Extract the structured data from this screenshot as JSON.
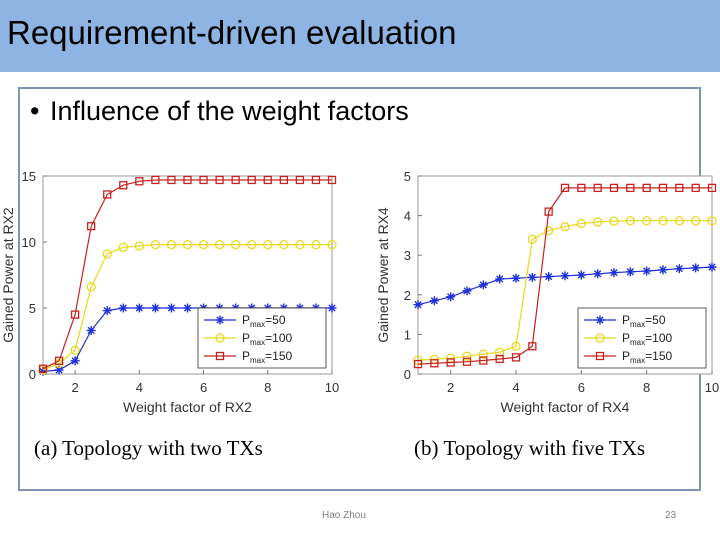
{
  "slide": {
    "title": "Requirement-driven evaluation",
    "bullet": "Influence of the weight factors",
    "footer_author": "Hao Zhou",
    "page_number": "23"
  },
  "colors": {
    "title_bar": "#8eb4e3",
    "frame": "#7f94b4",
    "series_blue": "#1f2fd9",
    "series_yellow": "#e8d81a",
    "series_red": "#c8221f"
  },
  "chart_data": [
    {
      "type": "line",
      "caption": "(a)  Topology  with  two  TXs",
      "xlabel": "Weight factor of RX2",
      "ylabel": "Gained Power at RX2",
      "xlim": [
        1,
        10
      ],
      "ylim": [
        0,
        15
      ],
      "xticks": [
        "2",
        "4",
        "6",
        "8",
        "10"
      ],
      "yticks": [
        "0",
        "5",
        "10",
        "15"
      ],
      "legend_position": "bottom-right",
      "x": [
        1,
        1.5,
        2,
        2.5,
        3,
        3.5,
        4,
        4.5,
        5,
        5.5,
        6,
        6.5,
        7,
        7.5,
        8,
        8.5,
        9,
        9.5,
        10
      ],
      "series": [
        {
          "name_base": "P",
          "name_sub": "max",
          "name_value": "=50",
          "marker": "asterisk",
          "color": "#1f2fd9",
          "values": [
            0.2,
            0.3,
            1.0,
            3.3,
            4.8,
            5.0,
            5.0,
            5.0,
            5.0,
            5.0,
            5.0,
            5.0,
            5.0,
            5.0,
            5.0,
            5.0,
            5.0,
            5.0,
            5.0
          ]
        },
        {
          "name_base": "P",
          "name_sub": "max",
          "name_value": "=100",
          "marker": "circle",
          "color": "#e8d81a",
          "values": [
            0.3,
            0.8,
            1.8,
            6.6,
            9.1,
            9.6,
            9.7,
            9.8,
            9.8,
            9.8,
            9.8,
            9.8,
            9.8,
            9.8,
            9.8,
            9.8,
            9.8,
            9.8,
            9.8
          ]
        },
        {
          "name_base": "P",
          "name_sub": "max",
          "name_value": "=150",
          "marker": "square",
          "color": "#c8221f",
          "values": [
            0.4,
            1.0,
            4.5,
            11.2,
            13.6,
            14.3,
            14.6,
            14.7,
            14.7,
            14.7,
            14.7,
            14.7,
            14.7,
            14.7,
            14.7,
            14.7,
            14.7,
            14.7,
            14.7
          ]
        }
      ]
    },
    {
      "type": "line",
      "caption": "(b)  Topology  with  five  TXs",
      "xlabel": "Weight factor of RX4",
      "ylabel": "Gained Power at RX4",
      "xlim": [
        1,
        10
      ],
      "ylim": [
        0,
        5
      ],
      "xticks": [
        "2",
        "4",
        "6",
        "8",
        "10"
      ],
      "yticks": [
        "0",
        "1",
        "2",
        "3",
        "4",
        "5"
      ],
      "legend_position": "bottom-right",
      "x": [
        1,
        1.5,
        2,
        2.5,
        3,
        3.5,
        4,
        4.5,
        5,
        5.5,
        6,
        6.5,
        7,
        7.5,
        8,
        8.5,
        9,
        9.5,
        10
      ],
      "series": [
        {
          "name_base": "P",
          "name_sub": "max",
          "name_value": "=50",
          "marker": "asterisk",
          "color": "#1f2fd9",
          "values": [
            1.75,
            1.85,
            1.95,
            2.1,
            2.25,
            2.4,
            2.42,
            2.44,
            2.46,
            2.48,
            2.5,
            2.53,
            2.56,
            2.58,
            2.6,
            2.63,
            2.66,
            2.68,
            2.7
          ]
        },
        {
          "name_base": "P",
          "name_sub": "max",
          "name_value": "=100",
          "marker": "circle",
          "color": "#e8d81a",
          "values": [
            0.35,
            0.37,
            0.4,
            0.45,
            0.5,
            0.55,
            0.7,
            3.4,
            3.62,
            3.72,
            3.8,
            3.84,
            3.86,
            3.87,
            3.87,
            3.87,
            3.87,
            3.87,
            3.87
          ]
        },
        {
          "name_base": "P",
          "name_sub": "max",
          "name_value": "=150",
          "marker": "square",
          "color": "#c8221f",
          "values": [
            0.25,
            0.27,
            0.29,
            0.31,
            0.34,
            0.38,
            0.42,
            0.7,
            4.1,
            4.7,
            4.7,
            4.7,
            4.7,
            4.7,
            4.7,
            4.7,
            4.7,
            4.7,
            4.7
          ]
        }
      ]
    }
  ]
}
